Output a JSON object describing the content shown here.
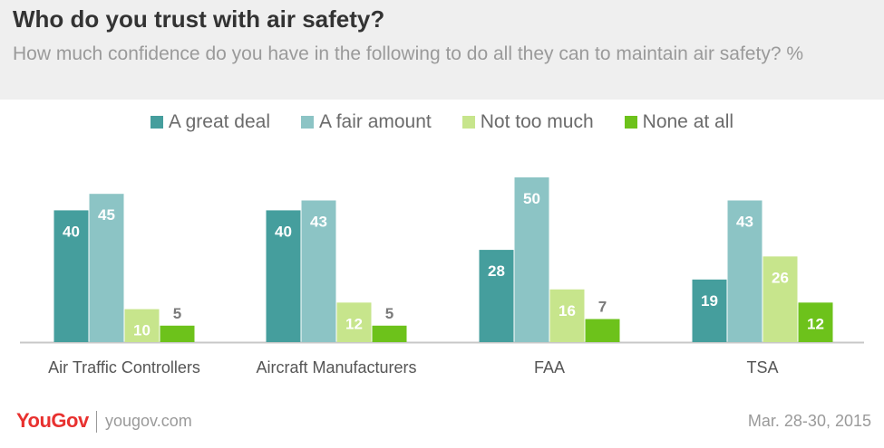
{
  "header": {
    "title": "Who do you trust with air safety?",
    "subtitle": "How much confidence do you have in the following to do all they can to maintain air safety? %"
  },
  "footer": {
    "brand": "YouGov",
    "site": "yougov.com",
    "date": "Mar. 28-30, 2015"
  },
  "colors": {
    "great_deal": "#459e9d",
    "fair_amount": "#8cc4c5",
    "not_too_much": "#c7e58c",
    "none_at_all": "#6dc21b"
  },
  "chart_data": {
    "type": "bar",
    "title": "Who do you trust with air safety?",
    "subtitle": "How much confidence do you have in the following to do all they can to maintain air safety? %",
    "categories": [
      "Air Traffic Controllers",
      "Aircraft Manufacturers",
      "FAA",
      "TSA"
    ],
    "series": [
      {
        "name": "A great deal",
        "values": [
          40,
          40,
          28,
          19
        ],
        "color": "#459e9d"
      },
      {
        "name": "A fair amount",
        "values": [
          45,
          43,
          50,
          43
        ],
        "color": "#8cc4c5"
      },
      {
        "name": "Not too much",
        "values": [
          10,
          12,
          16,
          26
        ],
        "color": "#c7e58c"
      },
      {
        "name": "None at all",
        "values": [
          5,
          5,
          7,
          12
        ],
        "color": "#6dc21b"
      }
    ],
    "legend_position": "top",
    "grid": false,
    "ylim": [
      0,
      55
    ],
    "xlabel": "",
    "ylabel": ""
  }
}
